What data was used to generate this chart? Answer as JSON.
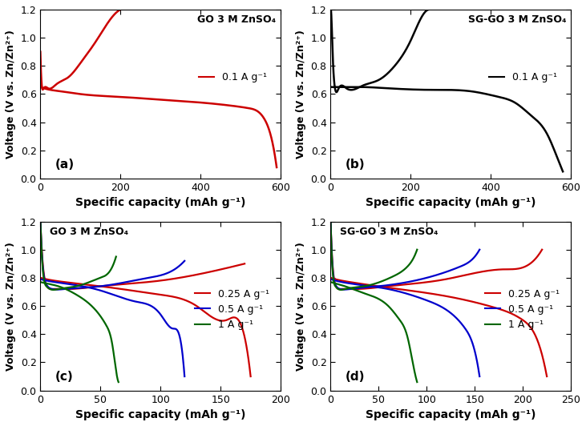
{
  "fig_width": 7.31,
  "fig_height": 5.32,
  "background_color": "#ffffff",
  "panel_a": {
    "label": "(a)",
    "title": "GO 3 M ZnSO₄",
    "legend": "0.1 A g⁻¹",
    "color": "#cc0000",
    "xlim": [
      0,
      600
    ],
    "ylim": [
      0.0,
      1.2
    ],
    "xticks": [
      0,
      200,
      400,
      600
    ],
    "yticks": [
      0.0,
      0.2,
      0.4,
      0.6,
      0.8,
      1.0,
      1.2
    ]
  },
  "panel_b": {
    "label": "(b)",
    "title": "SG-GO 3 M ZnSO₄",
    "legend": "0.1 A g⁻¹",
    "color": "#000000",
    "xlim": [
      0,
      600
    ],
    "ylim": [
      0.0,
      1.2
    ],
    "xticks": [
      0,
      200,
      400,
      600
    ],
    "yticks": [
      0.0,
      0.2,
      0.4,
      0.6,
      0.8,
      1.0,
      1.2
    ]
  },
  "panel_c": {
    "label": "(c)",
    "title": "GO 3 M ZnSO₄",
    "legends": [
      "0.25 A g⁻¹",
      "0.5 A g⁻¹",
      "1 A g⁻¹"
    ],
    "colors": [
      "#cc0000",
      "#0000cc",
      "#006600"
    ],
    "xlim": [
      0,
      200
    ],
    "ylim": [
      0.0,
      1.2
    ],
    "xticks": [
      0,
      50,
      100,
      150,
      200
    ],
    "yticks": [
      0.0,
      0.2,
      0.4,
      0.6,
      0.8,
      1.0,
      1.2
    ]
  },
  "panel_d": {
    "label": "(d)",
    "title": "SG-GO 3 M ZnSO₄",
    "legends": [
      "0.25 A g⁻¹",
      "0.5 A g⁻¹",
      "1 A g⁻¹"
    ],
    "colors": [
      "#cc0000",
      "#0000cc",
      "#006600"
    ],
    "xlim": [
      0,
      250
    ],
    "ylim": [
      0.0,
      1.2
    ],
    "xticks": [
      0,
      50,
      100,
      150,
      200,
      250
    ],
    "yticks": [
      0.0,
      0.2,
      0.4,
      0.6,
      0.8,
      1.0,
      1.2
    ]
  },
  "xlabel": "Specific capacity (mAh g⁻¹)",
  "ylabel": "Voltage (V vs. Zn/Zn²⁺)"
}
